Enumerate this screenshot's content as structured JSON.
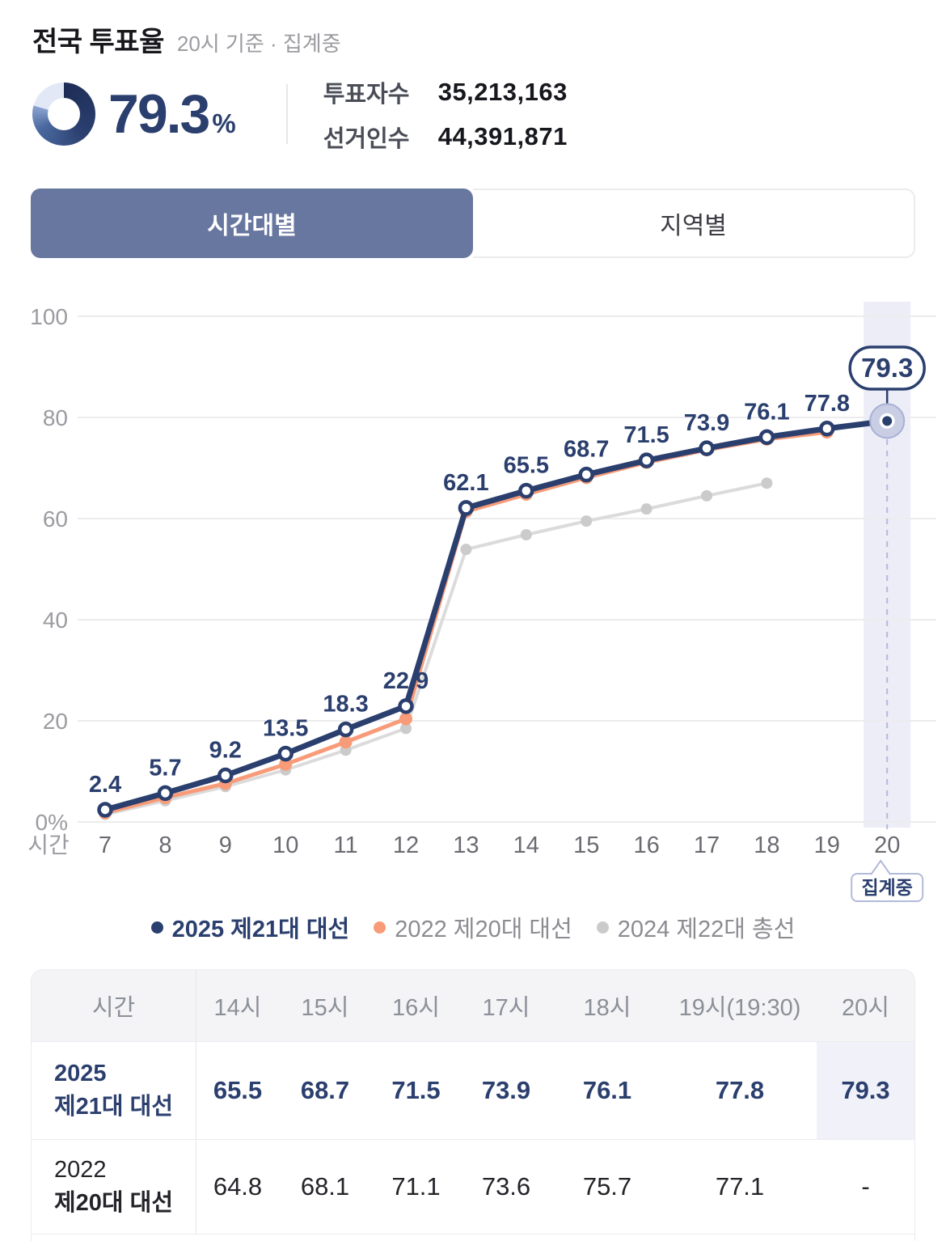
{
  "header": {
    "title": "전국 투표율",
    "subtitle": "20시 기준 · 집계중",
    "turnout": {
      "value": "79.3",
      "unit": "%"
    },
    "stats": [
      {
        "label": "투표자수",
        "value": "35,213,163"
      },
      {
        "label": "선거인수",
        "value": "44,391,871"
      }
    ]
  },
  "tabs": [
    {
      "label": "시간대별",
      "active": true
    },
    {
      "label": "지역별",
      "active": false
    }
  ],
  "chart_data": {
    "type": "line",
    "x": [
      7,
      8,
      9,
      10,
      11,
      12,
      13,
      14,
      15,
      16,
      17,
      18,
      19,
      20
    ],
    "xlabel": "시간",
    "ylim": [
      0,
      100
    ],
    "yticks": [
      0,
      20,
      40,
      60,
      80,
      100
    ],
    "grid": true,
    "legend_position": "bottom",
    "series": [
      {
        "name": "2025 제21대 대선",
        "color": "#2b3f6e",
        "marker": "hollow",
        "line_width": 7,
        "show_point_labels": true,
        "values": [
          2.4,
          5.7,
          9.2,
          13.5,
          18.3,
          22.9,
          62.1,
          65.5,
          68.7,
          71.5,
          73.9,
          76.1,
          77.8,
          79.3
        ]
      },
      {
        "name": "2022 제20대 대선",
        "color": "#f89b78",
        "marker": "solid",
        "marker_r": 8,
        "line_width": 5,
        "show_point_labels": false,
        "values": [
          1.8,
          4.8,
          7.6,
          11.4,
          15.8,
          20.4,
          61.4,
          64.8,
          68.1,
          71.1,
          73.6,
          75.7,
          77.1,
          null
        ]
      },
      {
        "name": "2024 제22대 총선",
        "color": "#dbdbdb",
        "marker": "solid",
        "marker_color": "#cbcbcb",
        "marker_r": 7,
        "line_width": 4,
        "show_point_labels": false,
        "values": [
          1.5,
          4.2,
          7.0,
          10.3,
          14.2,
          18.5,
          53.9,
          56.8,
          59.5,
          61.9,
          64.5,
          67.0,
          null,
          null
        ]
      }
    ],
    "highlight": {
      "x": 20,
      "badge": "79.3",
      "status_label": "집계중"
    }
  },
  "table": {
    "headers": [
      "시간",
      "14시",
      "15시",
      "16시",
      "17시",
      "18시",
      "19시(19:30)",
      "20시"
    ],
    "rows": [
      {
        "label_lines": [
          "2025",
          "제21대 대선"
        ],
        "values": [
          "65.5",
          "68.7",
          "71.5",
          "73.9",
          "76.1",
          "77.8",
          "79.3"
        ],
        "emphasis": true,
        "highlight_last": true
      },
      {
        "label_lines": [
          "2022",
          "제20대 대선"
        ],
        "values": [
          "64.8",
          "68.1",
          "71.1",
          "73.6",
          "75.7",
          "77.1",
          "-"
        ],
        "emphasis": false,
        "highlight_last": false
      }
    ]
  },
  "colors": {
    "accent_navy": "#2b3f6e",
    "accent_orange": "#f89b78",
    "accent_gray": "#dbdbdb",
    "tab_active_bg": "#68779f",
    "highlight_band": "#ededf7"
  }
}
